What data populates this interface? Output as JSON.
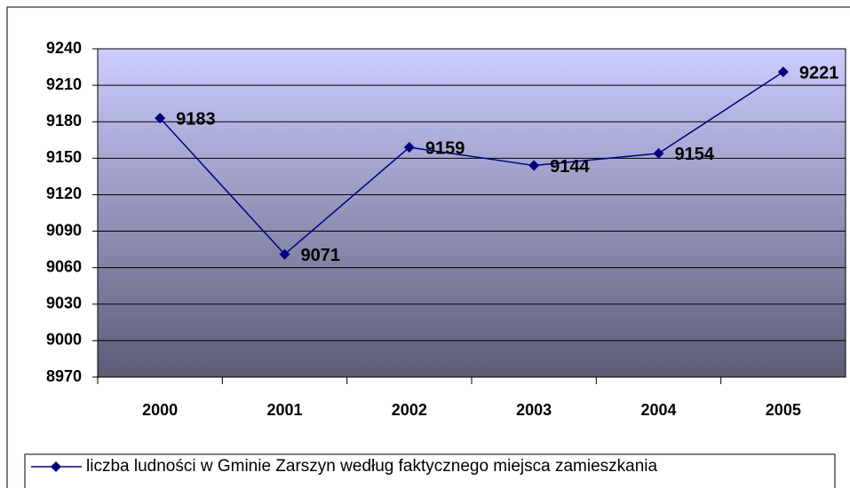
{
  "chart_data": {
    "type": "line",
    "categories": [
      "2000",
      "2001",
      "2002",
      "2003",
      "2004",
      "2005"
    ],
    "series": [
      {
        "name": "liczba ludności w Gminie Zarszyn według faktycznego miejsca zamieszkania",
        "color": "#000080",
        "values": [
          9183,
          9071,
          9159,
          9144,
          9154,
          9221
        ]
      }
    ],
    "ylim": [
      8970,
      9240
    ],
    "yticks": [
      8970,
      9000,
      9030,
      9060,
      9090,
      9120,
      9150,
      9180,
      9210,
      9240
    ],
    "grid": true
  }
}
